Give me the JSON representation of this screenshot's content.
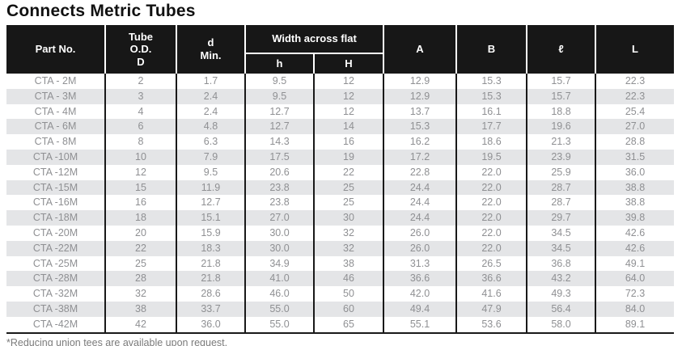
{
  "title": "Connects Metric Tubes",
  "footnote": "*Reducing union tees are available upon request.",
  "colors": {
    "header_bg": "#171717",
    "header_text": "#ffffff",
    "header_separator": "#ffffff",
    "row_stripe": "#e4e5e7",
    "row_text": "#8f9093",
    "grid_line": "#191919",
    "title_text": "#111111"
  },
  "table": {
    "headers": {
      "part_no": "Part No.",
      "tube_od": "Tube\nO.D.\nD",
      "d_min": "d\nMin.",
      "width_across_flat": "Width across flat",
      "h_small": "h",
      "h_large": "H",
      "a": "A",
      "b": "B",
      "l_script": "ℓ",
      "l_cap": "L"
    },
    "rows": [
      [
        "CTA - 2M",
        "2",
        "1.7",
        "9.5",
        "12",
        "12.9",
        "15.3",
        "15.7",
        "22.3"
      ],
      [
        "CTA - 3M",
        "3",
        "2.4",
        "9.5",
        "12",
        "12.9",
        "15.3",
        "15.7",
        "22.3"
      ],
      [
        "CTA - 4M",
        "4",
        "2.4",
        "12.7",
        "12",
        "13.7",
        "16.1",
        "18.8",
        "25.4"
      ],
      [
        "CTA - 6M",
        "6",
        "4.8",
        "12.7",
        "14",
        "15.3",
        "17.7",
        "19.6",
        "27.0"
      ],
      [
        "CTA - 8M",
        "8",
        "6.3",
        "14.3",
        "16",
        "16.2",
        "18.6",
        "21.3",
        "28.8"
      ],
      [
        "CTA -10M",
        "10",
        "7.9",
        "17.5",
        "19",
        "17.2",
        "19.5",
        "23.9",
        "31.5"
      ],
      [
        "CTA -12M",
        "12",
        "9.5",
        "20.6",
        "22",
        "22.8",
        "22.0",
        "25.9",
        "36.0"
      ],
      [
        "CTA -15M",
        "15",
        "11.9",
        "23.8",
        "25",
        "24.4",
        "22.0",
        "28.7",
        "38.8"
      ],
      [
        "CTA -16M",
        "16",
        "12.7",
        "23.8",
        "25",
        "24.4",
        "22.0",
        "28.7",
        "38.8"
      ],
      [
        "CTA -18M",
        "18",
        "15.1",
        "27.0",
        "30",
        "24.4",
        "22.0",
        "29.7",
        "39.8"
      ],
      [
        "CTA -20M",
        "20",
        "15.9",
        "30.0",
        "32",
        "26.0",
        "22.0",
        "34.5",
        "42.6"
      ],
      [
        "CTA -22M",
        "22",
        "18.3",
        "30.0",
        "32",
        "26.0",
        "22.0",
        "34.5",
        "42.6"
      ],
      [
        "CTA -25M",
        "25",
        "21.8",
        "34.9",
        "38",
        "31.3",
        "26.5",
        "36.8",
        "49.1"
      ],
      [
        "CTA -28M",
        "28",
        "21.8",
        "41.0",
        "46",
        "36.6",
        "36.6",
        "43.2",
        "64.0"
      ],
      [
        "CTA -32M",
        "32",
        "28.6",
        "46.0",
        "50",
        "42.0",
        "41.6",
        "49.3",
        "72.3"
      ],
      [
        "CTA -38M",
        "38",
        "33.7",
        "55.0",
        "60",
        "49.4",
        "47.9",
        "56.4",
        "84.0"
      ],
      [
        "CTA -42M",
        "42",
        "36.0",
        "55.0",
        "65",
        "55.1",
        "53.6",
        "58.0",
        "89.1"
      ]
    ],
    "column_keys": [
      "part_no",
      "tube_od",
      "d_min",
      "h_small",
      "h_large",
      "a",
      "b",
      "l_script",
      "l_cap"
    ]
  }
}
